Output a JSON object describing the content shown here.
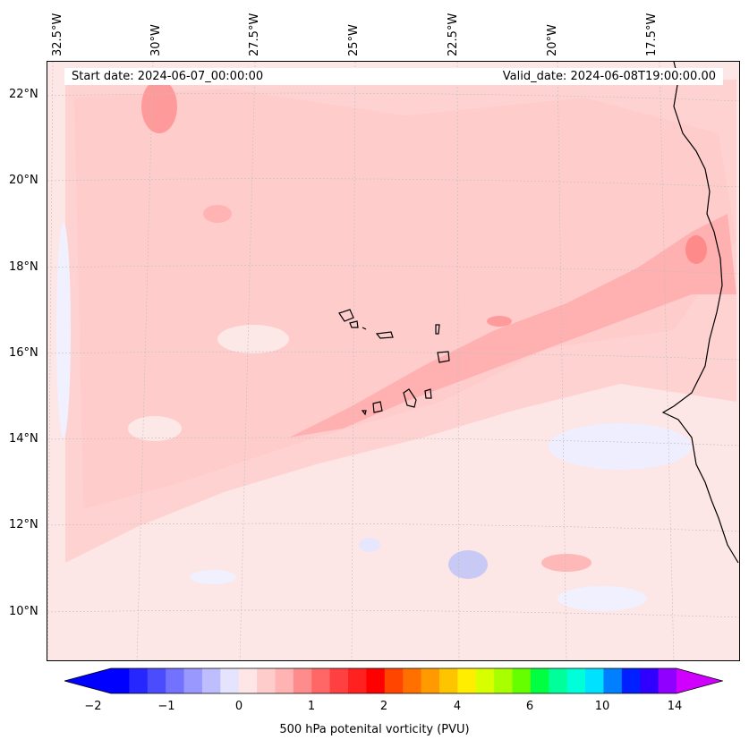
{
  "header": {
    "start_date": "Start date: 2024-06-07_00:00:00",
    "valid_date": "Valid_date: 2024-06-08T19:00:00.00"
  },
  "lon_labels": [
    "32.5°W",
    "30°W",
    "27.5°W",
    "25°W",
    "22.5°W",
    "20°W",
    "17.5°W"
  ],
  "lat_labels": [
    "22°N",
    "20°N",
    "18°N",
    "16°N",
    "14°N",
    "12°N",
    "10°N"
  ],
  "colorbar": {
    "label": "500 hPa potenital vorticity (PVU)",
    "ticks": [
      "−2",
      "−1",
      "0",
      "1",
      "2",
      "4",
      "6",
      "10",
      "14"
    ],
    "colors": [
      "#0000ff",
      "#2626ff",
      "#4c4cff",
      "#7272ff",
      "#9898ff",
      "#bebeff",
      "#e4e4ff",
      "#ffe6e6",
      "#ffcccc",
      "#ffb3b3",
      "#ff8c8c",
      "#ff6666",
      "#ff4040",
      "#ff2020",
      "#ff0000",
      "#ff4500",
      "#ff7000",
      "#ff9a00",
      "#ffc400",
      "#ffee00",
      "#d8ff00",
      "#a8ff00",
      "#66ff00",
      "#00ff40",
      "#00ff9a",
      "#00ffd8",
      "#00e0ff",
      "#0080ff",
      "#0020ff",
      "#3000ff",
      "#9000ff"
    ],
    "extend_low": "#0000ff",
    "extend_high": "#d000ff"
  }
}
